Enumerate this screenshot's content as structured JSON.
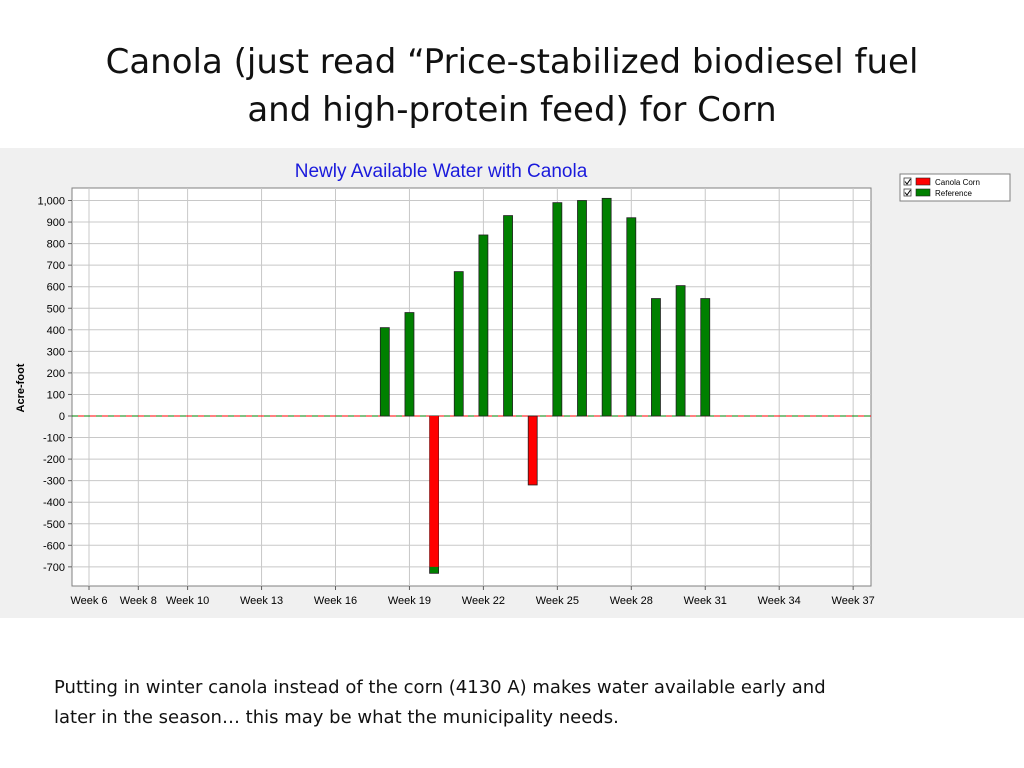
{
  "slide": {
    "title_lines": [
      "Canola (just read “Price-stabilized biodiesel fuel",
      "and high-protein feed) for Corn"
    ],
    "caption_lines": [
      "Putting in winter canola instead of the corn (4130 A) makes water available early and",
      "later in the season… this may be what the municipality needs."
    ]
  },
  "chart_data": {
    "type": "bar",
    "title": "Newly Available Water with Canola",
    "ylabel": "Acre-foot",
    "xlabel": "",
    "ylim": [
      -780,
      1050
    ],
    "yticks": [
      1000,
      900,
      800,
      700,
      600,
      500,
      400,
      300,
      200,
      100,
      0,
      -100,
      -200,
      -300,
      -400,
      -500,
      -600,
      -700
    ],
    "ytick_labels": [
      "1,000",
      "900",
      "800",
      "700",
      "600",
      "500",
      "400",
      "300",
      "200",
      "100",
      "0",
      "-100",
      "-200",
      "-300",
      "-400",
      "-500",
      "-600",
      "-700"
    ],
    "week_range": [
      6,
      37
    ],
    "xtick_weeks": [
      6,
      8,
      10,
      13,
      16,
      19,
      22,
      25,
      28,
      31,
      34,
      37
    ],
    "xtick_labels": [
      "Week 6",
      "Week 8",
      "Week 10",
      "Week 13",
      "Week 16",
      "Week 19",
      "Week 22",
      "Week 25",
      "Week 28",
      "Week 31",
      "Week 34",
      "Week 37"
    ],
    "grid": true,
    "legend_position": "top-right",
    "legend": [
      {
        "label": "Canola Corn",
        "color": "#ff0000",
        "checked": true
      },
      {
        "label": "Reference",
        "color": "#008000",
        "checked": true
      }
    ],
    "bars": [
      {
        "week": 18,
        "value": 410,
        "color": "#008000"
      },
      {
        "week": 19,
        "value": 480,
        "color": "#008000"
      },
      {
        "week": 20,
        "value": -730,
        "color": "#ff0000",
        "base_value": -700,
        "base_color": "#008000"
      },
      {
        "week": 21,
        "value": 670,
        "color": "#008000"
      },
      {
        "week": 22,
        "value": 840,
        "color": "#008000"
      },
      {
        "week": 23,
        "value": 930,
        "color": "#008000"
      },
      {
        "week": 24,
        "value": -320,
        "color": "#ff0000"
      },
      {
        "week": 25,
        "value": 990,
        "color": "#008000"
      },
      {
        "week": 26,
        "value": 1000,
        "color": "#008000"
      },
      {
        "week": 27,
        "value": 1010,
        "color": "#008000"
      },
      {
        "week": 28,
        "value": 920,
        "color": "#008000"
      },
      {
        "week": 29,
        "value": 545,
        "color": "#008000"
      },
      {
        "week": 30,
        "value": 605,
        "color": "#008000"
      },
      {
        "week": 31,
        "value": 545,
        "color": "#008000"
      }
    ],
    "colors": {
      "canola": "#ff0000",
      "reference": "#008000",
      "title": "#1a1adc"
    }
  }
}
